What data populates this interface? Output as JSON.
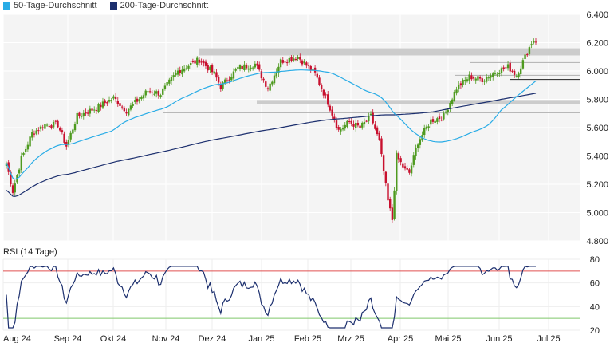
{
  "legend": [
    {
      "label": "50-Tage-Durchschnitt",
      "color": "#29ace6"
    },
    {
      "label": "200-Tage-Durchschnitt",
      "color": "#1c2f6e"
    }
  ],
  "rsi_title": "RSI (14 Tage)",
  "colors": {
    "up": "#4e9a1f",
    "down": "#c8102e",
    "ma50": "#29ace6",
    "ma200": "#1c2f6e",
    "rsi": "#1c2f6e",
    "rsi_upper": "#e05050",
    "rsi_lower": "#7fc86a",
    "zone": "#cccccc"
  },
  "chart_data": [
    {
      "type": "candlestick",
      "ylim": [
        4800,
        6400
      ],
      "yticks": [
        "4.800",
        "5.000",
        "5.200",
        "5.400",
        "5.600",
        "5.800",
        "6.000",
        "6.200",
        "6.400"
      ],
      "ytick_values": [
        4800,
        5000,
        5200,
        5400,
        5600,
        5800,
        6000,
        6200,
        6400
      ],
      "x_labels": [
        "Aug 24",
        "Sep 24",
        "Okt 24",
        "Nov 24",
        "Dez 24",
        "Jan 25",
        "Feb 25",
        "Mrz 25",
        "Apr 25",
        "Mai 25",
        "Jun 25",
        "Jul 25"
      ],
      "grid": true,
      "legend_position": "top-left",
      "resistance_zones": [
        {
          "from": 6110,
          "to": 6160
        },
        {
          "from": 5765,
          "to": 5795
        }
      ],
      "horizontal_levels": [
        6060,
        5970,
        5940,
        5705
      ],
      "anchors": [
        {
          "i": 0,
          "close": 5350
        },
        {
          "i": 3,
          "close": 5150
        },
        {
          "i": 7,
          "close": 5380
        },
        {
          "i": 12,
          "close": 5560
        },
        {
          "i": 18,
          "close": 5620
        },
        {
          "i": 24,
          "close": 5620
        },
        {
          "i": 28,
          "close": 5470
        },
        {
          "i": 33,
          "close": 5680
        },
        {
          "i": 42,
          "close": 5740
        },
        {
          "i": 50,
          "close": 5810
        },
        {
          "i": 56,
          "close": 5720
        },
        {
          "i": 66,
          "close": 5860
        },
        {
          "i": 72,
          "close": 5840
        },
        {
          "i": 80,
          "close": 6000
        },
        {
          "i": 90,
          "close": 6080
        },
        {
          "i": 97,
          "close": 5980
        },
        {
          "i": 100,
          "close": 5890
        },
        {
          "i": 108,
          "close": 6020
        },
        {
          "i": 116,
          "close": 6050
        },
        {
          "i": 122,
          "close": 5880
        },
        {
          "i": 128,
          "close": 6070
        },
        {
          "i": 136,
          "close": 6100
        },
        {
          "i": 144,
          "close": 5980
        },
        {
          "i": 150,
          "close": 5780
        },
        {
          "i": 155,
          "close": 5580
        },
        {
          "i": 160,
          "close": 5640
        },
        {
          "i": 165,
          "close": 5600
        },
        {
          "i": 170,
          "close": 5680
        },
        {
          "i": 174,
          "close": 5500
        },
        {
          "i": 178,
          "close": 5080
        },
        {
          "i": 180,
          "close": 4950
        },
        {
          "i": 182,
          "close": 5400
        },
        {
          "i": 186,
          "close": 5300
        },
        {
          "i": 188,
          "close": 5280
        },
        {
          "i": 192,
          "close": 5500
        },
        {
          "i": 198,
          "close": 5650
        },
        {
          "i": 204,
          "close": 5680
        },
        {
          "i": 210,
          "close": 5880
        },
        {
          "i": 216,
          "close": 5960
        },
        {
          "i": 222,
          "close": 5940
        },
        {
          "i": 228,
          "close": 5990
        },
        {
          "i": 234,
          "close": 6030
        },
        {
          "i": 238,
          "close": 5970
        },
        {
          "i": 242,
          "close": 6100
        },
        {
          "i": 245,
          "close": 6200
        },
        {
          "i": 246,
          "close": 6220
        }
      ]
    },
    {
      "type": "line",
      "title": "RSI (14 Tage)",
      "ylim": [
        20,
        80
      ],
      "yticks": [
        "20",
        "40",
        "60",
        "80"
      ],
      "ytick_values": [
        20,
        40,
        60,
        80
      ],
      "reference_lines": [
        70,
        30
      ],
      "values_note": "derived from price series"
    }
  ]
}
